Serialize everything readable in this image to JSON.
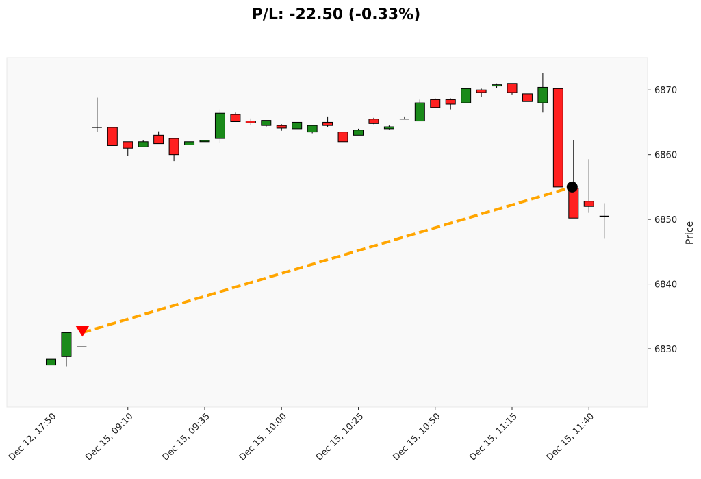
{
  "chart_data": {
    "type": "candlestick",
    "title": "P/L: -22.50 (-0.33%)",
    "ylabel": "Price",
    "xlabel": "",
    "ylim": [
      6821,
      6875
    ],
    "y_ticks": [
      6830,
      6840,
      6850,
      6860,
      6870
    ],
    "grid": false,
    "x_tick_labels": [
      {
        "label": "Dec 12, 17:50",
        "index": 0
      },
      {
        "label": "Dec 15, 09:10",
        "index": 5
      },
      {
        "label": "Dec 15, 09:35",
        "index": 10
      },
      {
        "label": "Dec 15, 10:00",
        "index": 15
      },
      {
        "label": "Dec 15, 10:25",
        "index": 20
      },
      {
        "label": "Dec 15, 10:50",
        "index": 25
      },
      {
        "label": "Dec 15, 11:15",
        "index": 30
      },
      {
        "label": "Dec 15, 11:40",
        "index": 35
      }
    ],
    "candles": [
      {
        "o": 6827.5,
        "h": 6831.0,
        "l": 6823.3,
        "c": 6828.4
      },
      {
        "o": 6828.8,
        "h": 6832.5,
        "l": 6827.3,
        "c": 6832.5
      },
      {
        "o": 6830.3,
        "h": 6830.3,
        "l": 6830.3,
        "c": 6830.3
      },
      {
        "o": 6864.2,
        "h": 6868.8,
        "l": 6863.5,
        "c": 6864.2
      },
      {
        "o": 6864.2,
        "h": 6864.2,
        "l": 6861.4,
        "c": 6861.4
      },
      {
        "o": 6862.0,
        "h": 6862.0,
        "l": 6859.8,
        "c": 6861.0
      },
      {
        "o": 6861.2,
        "h": 6862.2,
        "l": 6861.2,
        "c": 6862.0
      },
      {
        "o": 6863.0,
        "h": 6863.6,
        "l": 6861.7,
        "c": 6861.7
      },
      {
        "o": 6862.5,
        "h": 6862.5,
        "l": 6859.0,
        "c": 6860.0
      },
      {
        "o": 6861.5,
        "h": 6862.0,
        "l": 6861.5,
        "c": 6862.0
      },
      {
        "o": 6862.0,
        "h": 6862.3,
        "l": 6862.0,
        "c": 6862.2
      },
      {
        "o": 6862.5,
        "h": 6867.0,
        "l": 6861.8,
        "c": 6866.4
      },
      {
        "o": 6866.2,
        "h": 6866.5,
        "l": 6865.1,
        "c": 6865.1
      },
      {
        "o": 6865.2,
        "h": 6865.6,
        "l": 6864.6,
        "c": 6864.9
      },
      {
        "o": 6864.5,
        "h": 6865.3,
        "l": 6864.3,
        "c": 6865.3
      },
      {
        "o": 6864.5,
        "h": 6864.7,
        "l": 6863.7,
        "c": 6864.1
      },
      {
        "o": 6864.0,
        "h": 6865.0,
        "l": 6864.0,
        "c": 6865.0
      },
      {
        "o": 6863.5,
        "h": 6864.5,
        "l": 6863.3,
        "c": 6864.5
      },
      {
        "o": 6865.0,
        "h": 6865.8,
        "l": 6864.3,
        "c": 6864.5
      },
      {
        "o": 6863.5,
        "h": 6863.5,
        "l": 6862.0,
        "c": 6862.0
      },
      {
        "o": 6863.0,
        "h": 6864.0,
        "l": 6863.0,
        "c": 6863.8
      },
      {
        "o": 6865.5,
        "h": 6865.7,
        "l": 6864.7,
        "c": 6864.8
      },
      {
        "o": 6864.0,
        "h": 6864.5,
        "l": 6863.9,
        "c": 6864.3
      },
      {
        "o": 6865.5,
        "h": 6865.8,
        "l": 6865.5,
        "c": 6865.6
      },
      {
        "o": 6865.2,
        "h": 6868.5,
        "l": 6865.2,
        "c": 6868.0
      },
      {
        "o": 6868.5,
        "h": 6868.7,
        "l": 6867.2,
        "c": 6867.3
      },
      {
        "o": 6868.5,
        "h": 6868.7,
        "l": 6867.0,
        "c": 6867.8
      },
      {
        "o": 6868.0,
        "h": 6870.2,
        "l": 6868.0,
        "c": 6870.2
      },
      {
        "o": 6870.0,
        "h": 6870.2,
        "l": 6868.9,
        "c": 6869.6
      },
      {
        "o": 6870.6,
        "h": 6871.0,
        "l": 6870.3,
        "c": 6870.8
      },
      {
        "o": 6871.0,
        "h": 6871.0,
        "l": 6869.3,
        "c": 6869.6
      },
      {
        "o": 6869.4,
        "h": 6869.4,
        "l": 6868.2,
        "c": 6868.2
      },
      {
        "o": 6868.0,
        "h": 6872.6,
        "l": 6866.5,
        "c": 6870.4
      },
      {
        "o": 6870.2,
        "h": 6870.2,
        "l": 6855.0,
        "c": 6855.0
      },
      {
        "o": 6854.8,
        "h": 6862.2,
        "l": 6850.2,
        "c": 6850.2
      },
      {
        "o": 6852.8,
        "h": 6859.3,
        "l": 6851.0,
        "c": 6852.0
      },
      {
        "o": 6850.5,
        "h": 6852.5,
        "l": 6847.0,
        "c": 6850.5
      }
    ],
    "trade": {
      "entry": {
        "index": 2,
        "price": 6832.5,
        "marker": "down-triangle"
      },
      "exit": {
        "index": 34,
        "price": 6855.0,
        "marker": "circle"
      }
    },
    "colors": {
      "up": "#1a8a1a",
      "down": "#ff2020",
      "doji": "#000000",
      "entry_marker": "#ff0000",
      "exit_marker": "#000000",
      "trade_line": "#ffa500",
      "plot_bg": "#f9f9f9",
      "plot_border": "#e8e8e8"
    }
  }
}
